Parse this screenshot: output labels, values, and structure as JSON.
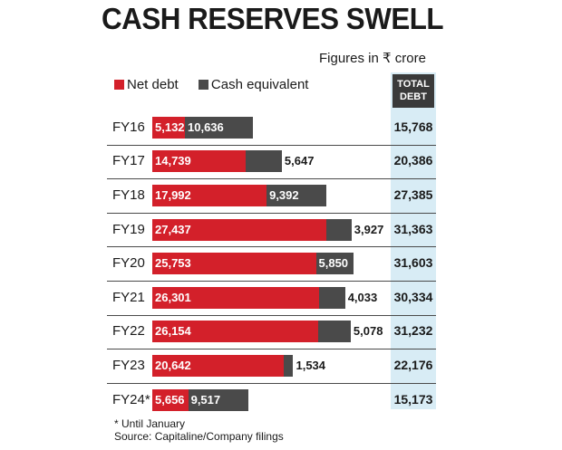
{
  "header": {
    "title": "CASH RESERVES SWELL",
    "subtitle": "Figures in ₹ crore",
    "total_head_line1": "TOTAL",
    "total_head_line2": "DEBT"
  },
  "legend": {
    "net_label": "Net debt",
    "cash_label": "Cash equivalent"
  },
  "colors": {
    "net": "#d3202a",
    "cash": "#4a4a4a",
    "total_bg": "#d8ecf5"
  },
  "chart_data": {
    "type": "bar",
    "orientation": "horizontal",
    "stacked": true,
    "categories": [
      "FY16",
      "FY17",
      "FY18",
      "FY19",
      "FY20",
      "FY21",
      "FY22",
      "FY23",
      "FY24*"
    ],
    "series": [
      {
        "name": "Net debt",
        "values": [
          5132,
          14739,
          17992,
          27437,
          25753,
          26301,
          26154,
          20642,
          5656
        ],
        "labels": [
          "5,132",
          "14,739",
          "17,992",
          "27,437",
          "25,753",
          "26,301",
          "26,154",
          "20,642",
          "5,656"
        ]
      },
      {
        "name": "Cash equivalent",
        "values": [
          10636,
          5647,
          9392,
          3927,
          5850,
          4033,
          5078,
          1534,
          9517
        ],
        "labels": [
          "10,636",
          "5,647",
          "9,392",
          "3,927",
          "5,850",
          "4,033",
          "5,078",
          "1,534",
          "9,517"
        ]
      }
    ],
    "total_debt": {
      "name": "TOTAL DEBT",
      "values": [
        15768,
        20386,
        27385,
        31363,
        31603,
        30334,
        31232,
        22176,
        15173
      ],
      "labels": [
        "15,768",
        "20,386",
        "27,385",
        "31,363",
        "31,603",
        "30,334",
        "31,232",
        "22,176",
        "15,173"
      ]
    },
    "title": "CASH RESERVES SWELL",
    "unit": "₹ crore",
    "xlim": [
      0,
      31500
    ]
  },
  "footer": {
    "note": "* Until January",
    "source": "Source: Capitaline/Company filings"
  }
}
